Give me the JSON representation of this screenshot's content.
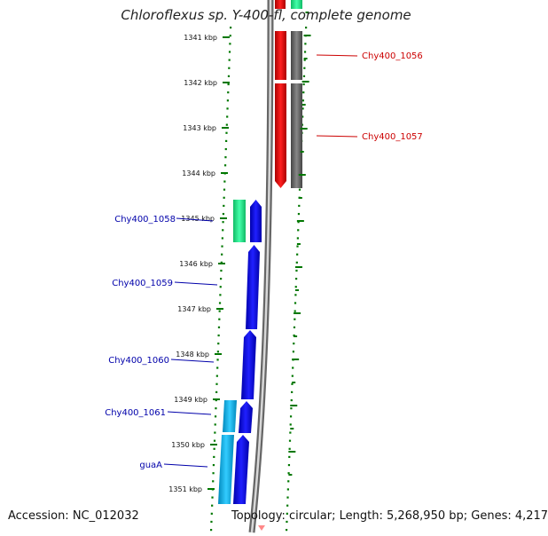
{
  "title": "Chloroflexus sp. Y-400-fl, complete genome",
  "footer": {
    "accession": "Accession: NC_012032",
    "summary": "Topology: circular; Length: 5,268,950 bp; Genes: 4,217"
  },
  "ticks": [
    {
      "label": "1341 kbp"
    },
    {
      "label": "1342 kbp"
    },
    {
      "label": "1343 kbp"
    },
    {
      "label": "1344 kbp"
    },
    {
      "label": "1345 kbp"
    },
    {
      "label": "1346 kbp"
    },
    {
      "label": "1347 kbp"
    },
    {
      "label": "1348 kbp"
    },
    {
      "label": "1349 kbp"
    },
    {
      "label": "1350 kbp"
    },
    {
      "label": "1351 kbp"
    }
  ],
  "genes_right": [
    {
      "label": "Chy400_1056",
      "color": "#cc0000"
    },
    {
      "label": "Chy400_1057",
      "color": "#cc0000"
    }
  ],
  "genes_left": [
    {
      "label": "Chy400_1058",
      "color": "#0000aa"
    },
    {
      "label": "Chy400_1059",
      "color": "#0000aa"
    },
    {
      "label": "Chy400_1060",
      "color": "#0000aa"
    },
    {
      "label": "Chy400_1061",
      "color": "#0000aa"
    },
    {
      "label": "guaA",
      "color": "#0000aa"
    }
  ],
  "colors": {
    "forward_cds": "#ee0000",
    "forward_feature": "#666666",
    "reverse_cds": "#0000ee",
    "rrna_green": "#22dd88",
    "cyan_feature": "#00aadd",
    "tick_green": "#007700",
    "backbone": "#888888"
  }
}
